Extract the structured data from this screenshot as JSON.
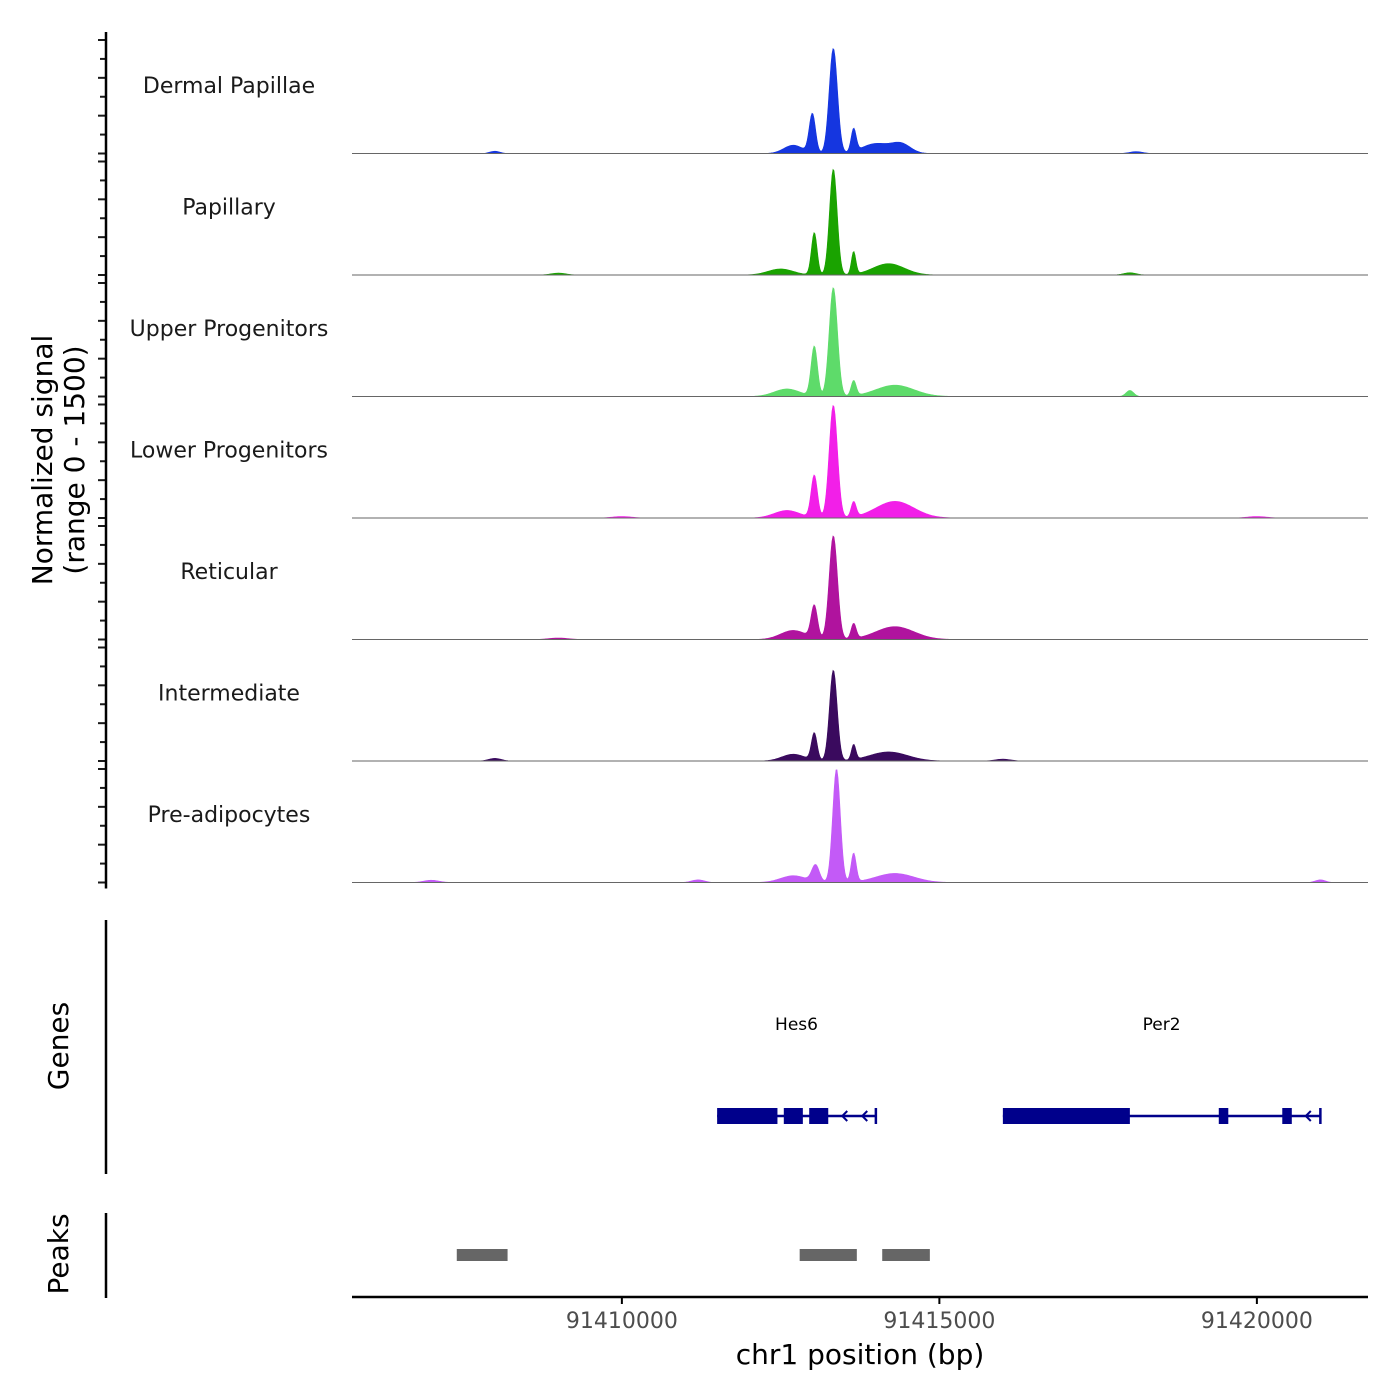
{
  "chart_data": {
    "type": "area",
    "title": "",
    "ylabel_line1": "Normalized signal",
    "ylabel_line2": "(range 0 - 1500)",
    "y_range": [
      0,
      1500
    ],
    "xlabel": "chr1 position (bp)",
    "x_range": [
      91405750,
      91421750
    ],
    "x_ticks": [
      {
        "value": 91410000,
        "label": "91410000"
      },
      {
        "value": 91415000,
        "label": "91415000"
      },
      {
        "value": 91420000,
        "label": "91420000"
      }
    ],
    "series": [
      {
        "name": "Dermal Papillae",
        "color": "#1536E0",
        "peaks": [
          {
            "center": 91413330,
            "height": 1390,
            "width": 65
          },
          {
            "center": 91413000,
            "height": 520,
            "width": 50
          },
          {
            "center": 91413650,
            "height": 300,
            "width": 40
          },
          {
            "center": 91412700,
            "height": 110,
            "width": 150
          },
          {
            "center": 91414000,
            "height": 130,
            "width": 220
          },
          {
            "center": 91414400,
            "height": 120,
            "width": 150
          },
          {
            "center": 91408000,
            "height": 30,
            "width": 80
          },
          {
            "center": 91418100,
            "height": 25,
            "width": 100
          }
        ]
      },
      {
        "name": "Papillary",
        "color": "#1AA300",
        "peaks": [
          {
            "center": 91413330,
            "height": 1400,
            "width": 60
          },
          {
            "center": 91413030,
            "height": 560,
            "width": 45
          },
          {
            "center": 91413650,
            "height": 300,
            "width": 35
          },
          {
            "center": 91412500,
            "height": 80,
            "width": 200
          },
          {
            "center": 91414200,
            "height": 150,
            "width": 250
          },
          {
            "center": 91409000,
            "height": 25,
            "width": 120
          },
          {
            "center": 91418000,
            "height": 30,
            "width": 100
          }
        ]
      },
      {
        "name": "Upper Progenitors",
        "color": "#5EDB6A",
        "peaks": [
          {
            "center": 91413330,
            "height": 1440,
            "width": 65
          },
          {
            "center": 91413030,
            "height": 660,
            "width": 50
          },
          {
            "center": 91413650,
            "height": 200,
            "width": 40
          },
          {
            "center": 91412600,
            "height": 100,
            "width": 200
          },
          {
            "center": 91414300,
            "height": 150,
            "width": 300
          },
          {
            "center": 91418000,
            "height": 80,
            "width": 60
          }
        ]
      },
      {
        "name": "Lower Progenitors",
        "color": "#F21FE8",
        "peaks": [
          {
            "center": 91413330,
            "height": 1490,
            "width": 65
          },
          {
            "center": 91413030,
            "height": 560,
            "width": 50
          },
          {
            "center": 91413650,
            "height": 200,
            "width": 40
          },
          {
            "center": 91412600,
            "height": 100,
            "width": 200
          },
          {
            "center": 91414300,
            "height": 220,
            "width": 300
          },
          {
            "center": 91410000,
            "height": 20,
            "width": 150
          },
          {
            "center": 91420000,
            "height": 20,
            "width": 150
          }
        ]
      },
      {
        "name": "Reticular",
        "color": "#B0139E",
        "peaks": [
          {
            "center": 91413330,
            "height": 1370,
            "width": 65
          },
          {
            "center": 91413030,
            "height": 430,
            "width": 50
          },
          {
            "center": 91413650,
            "height": 200,
            "width": 40
          },
          {
            "center": 91412700,
            "height": 120,
            "width": 200
          },
          {
            "center": 91414300,
            "height": 170,
            "width": 300
          },
          {
            "center": 91409000,
            "height": 20,
            "width": 150
          }
        ]
      },
      {
        "name": "Intermediate",
        "color": "#3A0A5E",
        "peaks": [
          {
            "center": 91413330,
            "height": 1200,
            "width": 60
          },
          {
            "center": 91413030,
            "height": 360,
            "width": 45
          },
          {
            "center": 91413650,
            "height": 200,
            "width": 35
          },
          {
            "center": 91412700,
            "height": 90,
            "width": 180
          },
          {
            "center": 91414200,
            "height": 120,
            "width": 300
          },
          {
            "center": 91408000,
            "height": 35,
            "width": 100
          },
          {
            "center": 91416000,
            "height": 25,
            "width": 120
          }
        ]
      },
      {
        "name": "Pre-adipocytes",
        "color": "#C35AF7",
        "peaks": [
          {
            "center": 91413380,
            "height": 1500,
            "width": 60
          },
          {
            "center": 91413650,
            "height": 380,
            "width": 40
          },
          {
            "center": 91413050,
            "height": 220,
            "width": 60
          },
          {
            "center": 91412700,
            "height": 90,
            "width": 200
          },
          {
            "center": 91414300,
            "height": 120,
            "width": 300
          },
          {
            "center": 91407000,
            "height": 30,
            "width": 120
          },
          {
            "center": 91411200,
            "height": 35,
            "width": 100
          },
          {
            "center": 91421000,
            "height": 35,
            "width": 80
          }
        ]
      }
    ],
    "genes_track_label": "Genes",
    "peaks_track_label": "Peaks",
    "gene_color": "#00008B",
    "peak_color": "#666666",
    "genes": [
      {
        "name": "Hes6",
        "strand": "-",
        "start": 91411500,
        "end": 91414000,
        "exons": [
          [
            91411500,
            91412450
          ],
          [
            91412550,
            91412850
          ],
          [
            91412950,
            91413250
          ]
        ]
      },
      {
        "name": "Per2",
        "strand": "-",
        "start": 91416000,
        "end": 91421000,
        "exons": [
          [
            91416000,
            91418000
          ],
          [
            91419400,
            91419550
          ],
          [
            91420400,
            91420550
          ]
        ]
      }
    ],
    "peaks": [
      [
        91407400,
        91408200
      ],
      [
        91412800,
        91413700
      ],
      [
        91414100,
        91414850
      ]
    ]
  }
}
